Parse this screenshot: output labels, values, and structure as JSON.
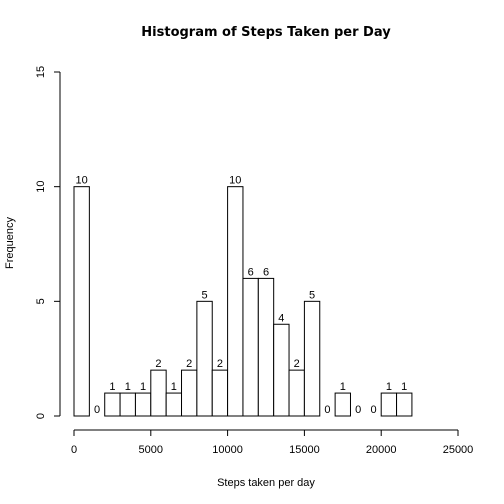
{
  "chart_data": {
    "type": "bar",
    "title": "Histogram of Steps Taken per Day",
    "xlabel": "Steps taken per day",
    "ylabel": "Frequency",
    "bin_width": 1000,
    "bins_start": [
      0,
      1000,
      2000,
      3000,
      4000,
      5000,
      6000,
      7000,
      8000,
      9000,
      10000,
      11000,
      12000,
      13000,
      14000,
      15000,
      16000,
      17000,
      18000,
      19000,
      20000,
      21000
    ],
    "values": [
      10,
      0,
      1,
      1,
      1,
      2,
      1,
      2,
      5,
      2,
      10,
      6,
      6,
      4,
      2,
      5,
      0,
      1,
      0,
      0,
      1,
      1
    ],
    "value_labels": [
      "10",
      "0",
      "1",
      "1",
      "1",
      "2",
      "1",
      "2",
      "5",
      "2",
      "10",
      "6",
      "6",
      "4",
      "2",
      "5",
      "0",
      "1",
      "0",
      "0",
      "1",
      "1"
    ],
    "xlim": [
      0,
      25000
    ],
    "ylim": [
      0,
      15
    ],
    "x_ticks": [
      "0",
      "5000",
      "10000",
      "15000",
      "20000",
      "25000"
    ],
    "y_ticks": [
      "0",
      "5",
      "10",
      "15"
    ],
    "bar_fill": "#ffffff",
    "bar_stroke": "#000000",
    "grid": false,
    "legend": "none"
  }
}
